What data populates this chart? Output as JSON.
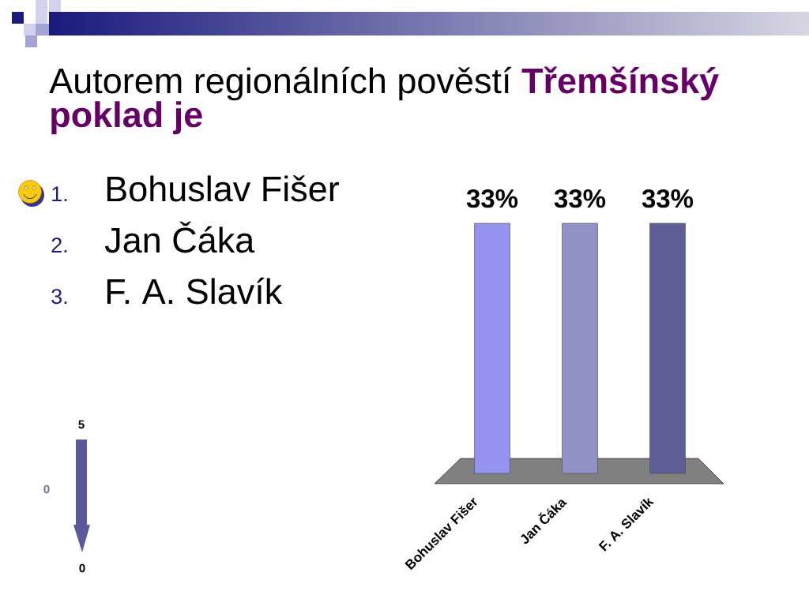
{
  "chart_data": {
    "type": "bar",
    "title": "Autorem regionálních pověstí **Třemšínský poklad je**",
    "categories": [
      "Bohuslav Fišer",
      "Jan Čáka",
      "F. A. Slavík"
    ],
    "values": [
      33,
      33,
      33
    ],
    "colors": [
      "#9494f0",
      "#9191c6",
      "#5e5e96"
    ],
    "value_labels": [
      "33%",
      "33%",
      "33%"
    ],
    "annotations": [
      "1.",
      "Bohuslav Fišer",
      "2.",
      "Jan Čáka",
      "3.",
      "F. A. Slavík",
      "5",
      "0",
      "0"
    ]
  }
}
